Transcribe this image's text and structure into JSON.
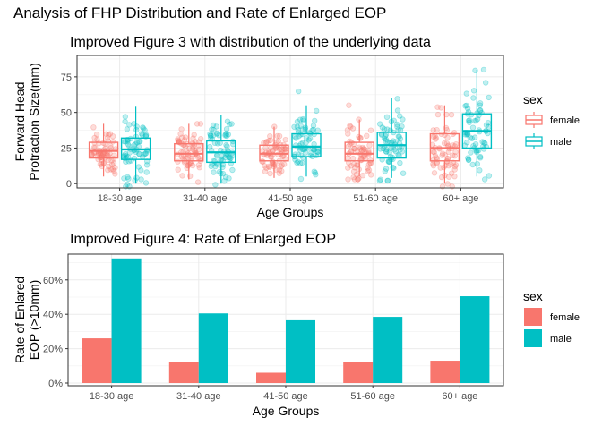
{
  "page_title": "Analysis of FHP Distribution and Rate of Enlarged EOP",
  "colors": {
    "female": "#F8766D",
    "male": "#00BFC4"
  },
  "chart_data": [
    {
      "type": "box",
      "title": "Improved Figure 3 with distribution of the underlying data",
      "xlabel": "Age Groups",
      "ylabel": "Forward Head Protraction Size(mm)",
      "categories": [
        "18-30 age",
        "31-40 age",
        "41-50 age",
        "51-60 age",
        "60+ age"
      ],
      "ylim": [
        -3,
        90
      ],
      "yticks": [
        0,
        25,
        50,
        75
      ],
      "legend_title": "sex",
      "series": [
        {
          "name": "female",
          "boxes": [
            {
              "q1": 18,
              "median": 23,
              "q3": 29,
              "whisker_low": 5,
              "whisker_high": 42
            },
            {
              "q1": 16,
              "median": 21,
              "q3": 28,
              "whisker_low": 3,
              "whisker_high": 42
            },
            {
              "q1": 16,
              "median": 21,
              "q3": 27,
              "whisker_low": 4,
              "whisker_high": 40
            },
            {
              "q1": 16,
              "median": 21,
              "q3": 29,
              "whisker_low": 5,
              "whisker_high": 45
            },
            {
              "q1": 16,
              "median": 25,
              "q3": 35,
              "whisker_low": 0,
              "whisker_high": 55
            }
          ]
        },
        {
          "name": "male",
          "boxes": [
            {
              "q1": 17,
              "median": 24,
              "q3": 32,
              "whisker_low": 0,
              "whisker_high": 54
            },
            {
              "q1": 15,
              "median": 22,
              "q3": 30,
              "whisker_low": 0,
              "whisker_high": 48
            },
            {
              "q1": 19,
              "median": 26,
              "q3": 35,
              "whisker_low": 5,
              "whisker_high": 55
            },
            {
              "q1": 18,
              "median": 27,
              "q3": 36,
              "whisker_low": 4,
              "whisker_high": 60
            },
            {
              "q1": 25,
              "median": 37,
              "q3": 49,
              "whisker_low": 5,
              "whisker_high": 80
            }
          ]
        }
      ],
      "grid": true
    },
    {
      "type": "bar",
      "title": "Improved Figure 4: Rate of Enlarged EOP",
      "xlabel": "Age Groups",
      "ylabel": "Rate of Enlared EOP (>10mm)",
      "categories": [
        "18-30 age",
        "31-40 age",
        "41-50 age",
        "51-60 age",
        "60+ age"
      ],
      "ylim": [
        0,
        75
      ],
      "yticks": [
        "0%",
        "20%",
        "40%",
        "60%"
      ],
      "legend_title": "sex",
      "series": [
        {
          "name": "female",
          "values": [
            26,
            12,
            6,
            12.5,
            13
          ]
        },
        {
          "name": "male",
          "values": [
            72.5,
            40.5,
            36.5,
            38.5,
            50.5
          ]
        }
      ],
      "grid": true
    }
  ]
}
